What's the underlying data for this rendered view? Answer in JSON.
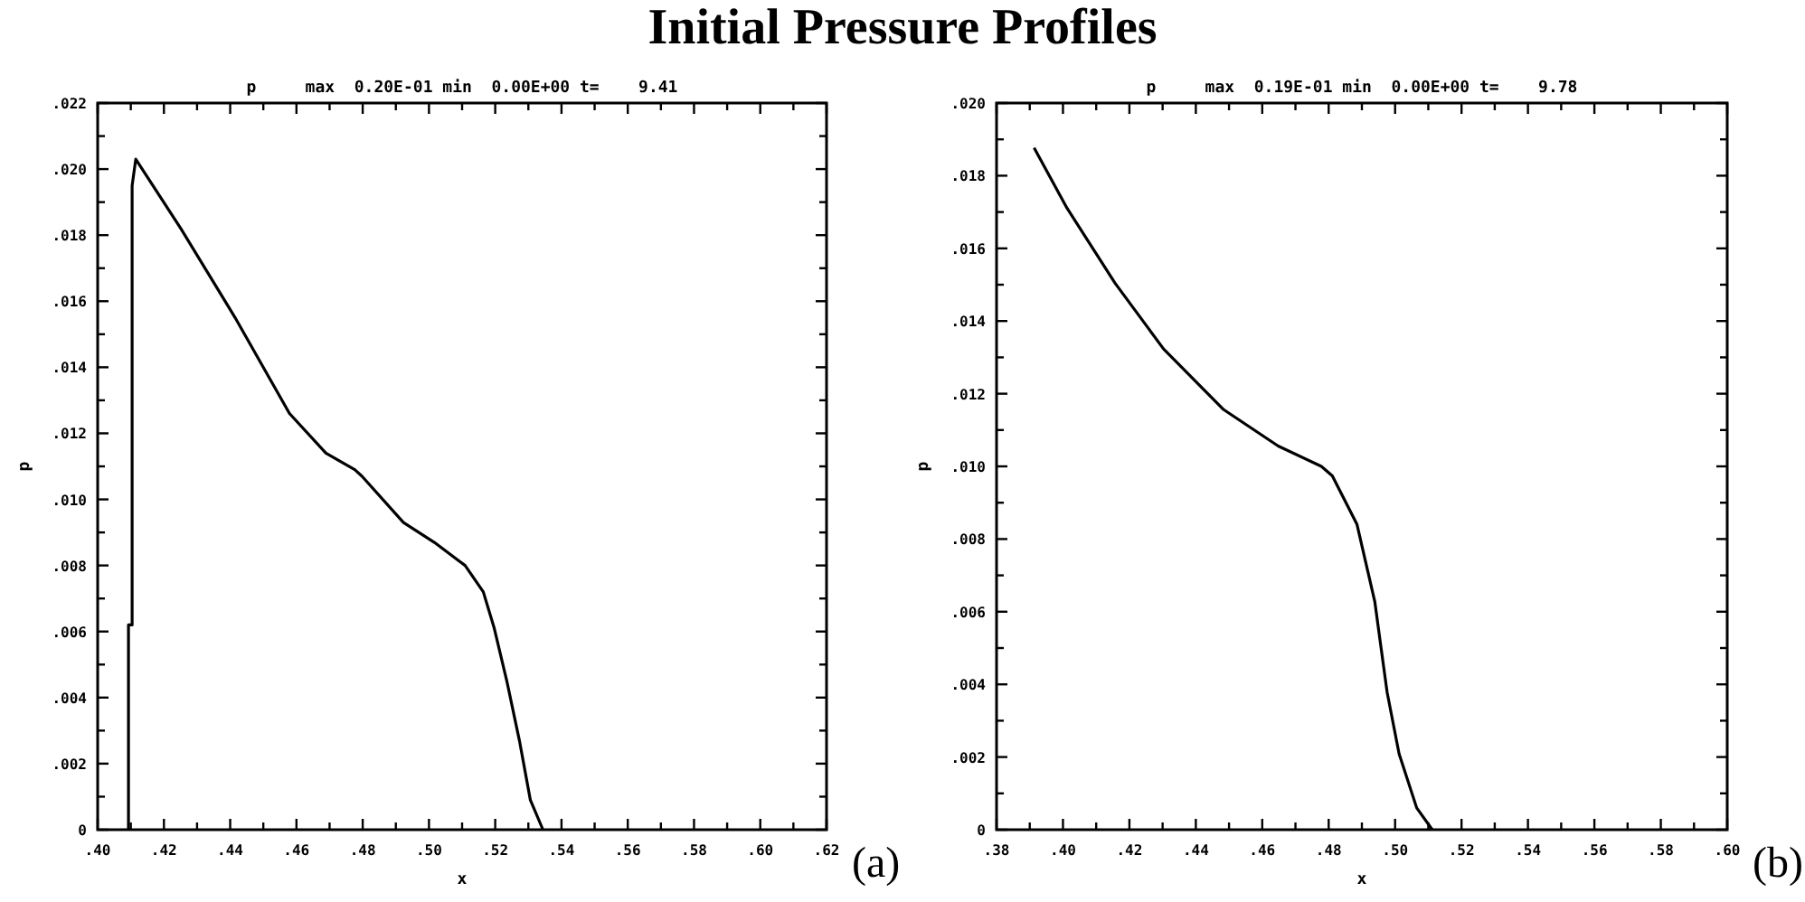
{
  "chart_data": [
    {
      "type": "line",
      "title": "Initial Pressure Profiles",
      "subtitle": "p     max  0.20E-01 min  0.00E+00 t=    9.41",
      "xlabel": "x",
      "ylabel": "p",
      "annotations": [
        "(a)"
      ],
      "x": [
        0.4093,
        0.4093,
        0.4104,
        0.4104,
        0.4115,
        0.4251,
        0.4415,
        0.4579,
        0.4689,
        0.4776,
        0.4798,
        0.4923,
        0.5016,
        0.5109,
        0.5164,
        0.5197,
        0.5235,
        0.5273,
        0.5306,
        0.5344
      ],
      "series": [
        {
          "color": "#000000",
          "values": [
            0,
            0.0062,
            0.0062,
            0.0195,
            0.0203,
            0.0182,
            0.0155,
            0.0126,
            0.0114,
            0.0109,
            0.0107,
            0.0093,
            0.0087,
            0.008,
            0.0072,
            0.0061,
            0.0045,
            0.0027,
            0.0009,
            0
          ]
        }
      ],
      "xlim": [
        0.4,
        0.62
      ],
      "ylim": [
        0,
        0.022
      ],
      "xticks": [
        {
          "value": 0.4,
          "label": ".40"
        },
        {
          "value": 0.41,
          "label": null
        },
        {
          "value": 0.42,
          "label": ".42"
        },
        {
          "value": 0.43,
          "label": null
        },
        {
          "value": 0.44,
          "label": ".44"
        },
        {
          "value": 0.45,
          "label": null
        },
        {
          "value": 0.46,
          "label": ".46"
        },
        {
          "value": 0.47,
          "label": null
        },
        {
          "value": 0.48,
          "label": ".48"
        },
        {
          "value": 0.49,
          "label": null
        },
        {
          "value": 0.5,
          "label": ".50"
        },
        {
          "value": 0.51,
          "label": null
        },
        {
          "value": 0.52,
          "label": ".52"
        },
        {
          "value": 0.53,
          "label": null
        },
        {
          "value": 0.54,
          "label": ".54"
        },
        {
          "value": 0.55,
          "label": null
        },
        {
          "value": 0.56,
          "label": ".56"
        },
        {
          "value": 0.57,
          "label": null
        },
        {
          "value": 0.58,
          "label": ".58"
        },
        {
          "value": 0.59,
          "label": null
        },
        {
          "value": 0.6,
          "label": ".60"
        },
        {
          "value": 0.61,
          "label": null
        },
        {
          "value": 0.62,
          "label": ".62"
        }
      ],
      "yticks": [
        0,
        {
          "value": 0.001,
          "label": null
        },
        {
          "value": 0.002,
          "label": ".002"
        },
        {
          "value": 0.003,
          "label": null
        },
        {
          "value": 0.004,
          "label": ".004"
        },
        {
          "value": 0.005,
          "label": null
        },
        {
          "value": 0.006,
          "label": ".006"
        },
        {
          "value": 0.007,
          "label": null
        },
        {
          "value": 0.008,
          "label": ".008"
        },
        {
          "value": 0.009,
          "label": null
        },
        {
          "value": 0.01,
          "label": ".010"
        },
        {
          "value": 0.011,
          "label": null
        },
        {
          "value": 0.012,
          "label": ".012"
        },
        {
          "value": 0.013,
          "label": null
        },
        {
          "value": 0.014,
          "label": ".014"
        },
        {
          "value": 0.015,
          "label": null
        },
        {
          "value": 0.016,
          "label": ".016"
        },
        {
          "value": 0.017,
          "label": null
        },
        {
          "value": 0.018,
          "label": ".018"
        },
        {
          "value": 0.019,
          "label": null
        },
        {
          "value": 0.02,
          "label": ".020"
        },
        {
          "value": 0.021,
          "label": null
        },
        {
          "value": 0.022,
          "label": ".022"
        }
      ]
    },
    {
      "type": "line",
      "subtitle": "p     max  0.19E-01 min  0.00E+00 t=    9.78",
      "xlabel": "x",
      "ylabel": "p",
      "annotations": [
        "(b)"
      ],
      "x": [
        0.3913,
        0.4012,
        0.4157,
        0.4303,
        0.4484,
        0.4648,
        0.4778,
        0.4811,
        0.4885,
        0.4939,
        0.4976,
        0.5012,
        0.5065,
        0.5112
      ],
      "series": [
        {
          "color": "#000000",
          "values": [
            0.01877,
            0.01711,
            0.01504,
            0.01323,
            0.01156,
            0.01056,
            0.01,
            0.00974,
            0.00841,
            0.00627,
            0.00378,
            0.00209,
            0.0006,
            0
          ]
        }
      ],
      "xlim": [
        0.38,
        0.6
      ],
      "ylim": [
        0,
        0.02
      ],
      "xticks": [
        {
          "value": 0.38,
          "label": ".38"
        },
        {
          "value": 0.39,
          "label": null
        },
        {
          "value": 0.4,
          "label": ".40"
        },
        {
          "value": 0.41,
          "label": null
        },
        {
          "value": 0.42,
          "label": ".42"
        },
        {
          "value": 0.43,
          "label": null
        },
        {
          "value": 0.44,
          "label": ".44"
        },
        {
          "value": 0.45,
          "label": null
        },
        {
          "value": 0.46,
          "label": ".46"
        },
        {
          "value": 0.47,
          "label": null
        },
        {
          "value": 0.48,
          "label": ".48"
        },
        {
          "value": 0.49,
          "label": null
        },
        {
          "value": 0.5,
          "label": ".50"
        },
        {
          "value": 0.51,
          "label": null
        },
        {
          "value": 0.52,
          "label": ".52"
        },
        {
          "value": 0.53,
          "label": null
        },
        {
          "value": 0.54,
          "label": ".54"
        },
        {
          "value": 0.55,
          "label": null
        },
        {
          "value": 0.56,
          "label": ".56"
        },
        {
          "value": 0.57,
          "label": null
        },
        {
          "value": 0.58,
          "label": ".58"
        },
        {
          "value": 0.59,
          "label": null
        },
        {
          "value": 0.6,
          "label": ".60"
        }
      ],
      "yticks": [
        0,
        {
          "value": 0.001,
          "label": null
        },
        {
          "value": 0.002,
          "label": ".002"
        },
        {
          "value": 0.003,
          "label": null
        },
        {
          "value": 0.004,
          "label": ".004"
        },
        {
          "value": 0.005,
          "label": null
        },
        {
          "value": 0.006,
          "label": ".006"
        },
        {
          "value": 0.007,
          "label": null
        },
        {
          "value": 0.008,
          "label": ".008"
        },
        {
          "value": 0.009,
          "label": null
        },
        {
          "value": 0.01,
          "label": ".010"
        },
        {
          "value": 0.011,
          "label": null
        },
        {
          "value": 0.012,
          "label": ".012"
        },
        {
          "value": 0.013,
          "label": null
        },
        {
          "value": 0.014,
          "label": ".014"
        },
        {
          "value": 0.015,
          "label": null
        },
        {
          "value": 0.016,
          "label": ".016"
        },
        {
          "value": 0.017,
          "label": null
        },
        {
          "value": 0.018,
          "label": ".018"
        },
        {
          "value": 0.019,
          "label": null
        },
        {
          "value": 0.02,
          "label": ".020"
        }
      ]
    }
  ]
}
